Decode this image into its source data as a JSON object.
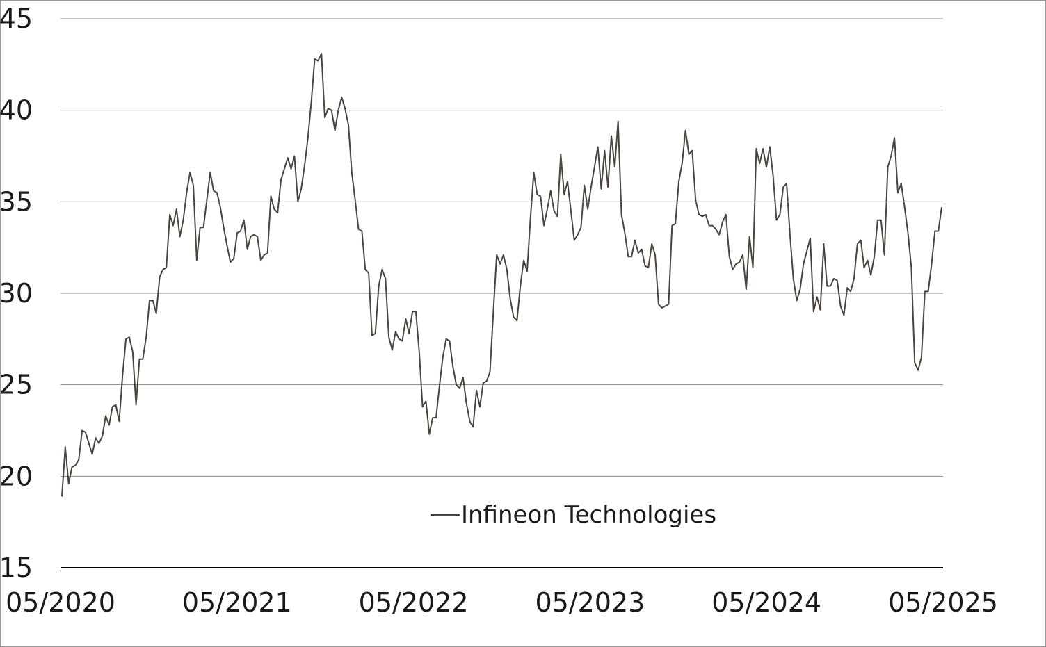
{
  "chart_data": {
    "type": "line",
    "title": "",
    "xlabel": "",
    "ylabel": "",
    "x_range": [
      "05/2020",
      "05/2025"
    ],
    "ylim": [
      15,
      45
    ],
    "y_ticks": [
      15,
      20,
      25,
      30,
      35,
      40,
      45
    ],
    "y_tick_labels": [
      "15",
      "20",
      "25",
      "30",
      "35",
      "40",
      "45"
    ],
    "x_tick_labels": [
      "05/2020",
      "05/2021",
      "05/2022",
      "05/2023",
      "05/2024",
      "05/2025"
    ],
    "grid": "horizontal",
    "legend_position": "bottom-center",
    "line_color": "#4a443d",
    "series": [
      {
        "name": "Infineon Technologies",
        "values": [
          18.9,
          21.6,
          19.6,
          20.5,
          20.6,
          20.9,
          22.5,
          22.4,
          21.8,
          21.2,
          22.1,
          21.8,
          22.2,
          23.3,
          22.8,
          23.8,
          23.9,
          23.0,
          25.5,
          27.5,
          27.6,
          26.8,
          23.9,
          26.4,
          26.4,
          27.6,
          29.6,
          29.6,
          28.9,
          30.9,
          31.3,
          31.4,
          34.3,
          33.7,
          34.6,
          33.1,
          34.0,
          35.5,
          36.6,
          35.9,
          31.8,
          33.6,
          33.6,
          35.1,
          36.6,
          35.6,
          35.5,
          34.7,
          33.6,
          32.6,
          31.7,
          31.9,
          33.3,
          33.4,
          34.0,
          32.4,
          33.1,
          33.2,
          33.1,
          31.8,
          32.1,
          32.2,
          35.3,
          34.6,
          34.4,
          36.2,
          36.8,
          37.4,
          36.8,
          37.5,
          35.0,
          35.7,
          37.0,
          38.5,
          40.5,
          42.8,
          42.7,
          43.1,
          39.6,
          40.1,
          40.0,
          38.9,
          40.0,
          40.7,
          40.1,
          39.2,
          36.6,
          35.1,
          33.5,
          33.4,
          31.3,
          31.1,
          27.7,
          27.8,
          30.4,
          31.3,
          30.8,
          27.6,
          26.9,
          27.9,
          27.5,
          27.4,
          28.6,
          27.8,
          29.0,
          29.0,
          26.8,
          23.8,
          24.1,
          22.3,
          23.2,
          23.2,
          24.9,
          26.5,
          27.5,
          27.4,
          26.0,
          25.0,
          24.8,
          25.4,
          24.0,
          23.0,
          22.7,
          24.7,
          23.8,
          25.1,
          25.2,
          25.7,
          29.0,
          32.1,
          31.6,
          32.1,
          31.3,
          29.7,
          28.7,
          28.5,
          30.4,
          31.8,
          31.2,
          34.1,
          36.6,
          35.4,
          35.3,
          33.7,
          34.6,
          35.6,
          34.5,
          34.2,
          37.6,
          35.4,
          36.1,
          34.5,
          32.9,
          33.2,
          33.6,
          35.9,
          34.6,
          35.8,
          36.9,
          38.0,
          35.7,
          37.8,
          35.8,
          38.6,
          36.9,
          39.4,
          34.3,
          33.3,
          32.0,
          32.0,
          32.9,
          32.2,
          32.4,
          31.5,
          31.4,
          32.7,
          32.1,
          29.4,
          29.2,
          29.3,
          29.4,
          33.7,
          33.8,
          36.1,
          37.1,
          38.9,
          37.6,
          37.8,
          35.1,
          34.3,
          34.2,
          34.3,
          33.7,
          33.7,
          33.5,
          33.2,
          33.9,
          34.3,
          32.0,
          31.3,
          31.6,
          31.7,
          32.1,
          30.2,
          33.1,
          31.4,
          37.9,
          37.1,
          37.9,
          36.9,
          38.0,
          36.4,
          34.0,
          34.3,
          35.8,
          36.0,
          33.2,
          30.8,
          29.6,
          30.2,
          31.6,
          32.3,
          33.0,
          29.0,
          29.8,
          29.1,
          32.7,
          30.4,
          30.4,
          30.8,
          30.7,
          29.3,
          28.8,
          30.3,
          30.1,
          30.8,
          32.7,
          32.9,
          31.4,
          31.8,
          31.0,
          32.0,
          34.0,
          34.0,
          32.1,
          36.9,
          37.5,
          38.5,
          35.5,
          36.0,
          34.7,
          33.3,
          31.4,
          26.2,
          25.8,
          26.5,
          30.1,
          30.1,
          31.6,
          33.4,
          33.4,
          34.7
        ]
      }
    ]
  }
}
